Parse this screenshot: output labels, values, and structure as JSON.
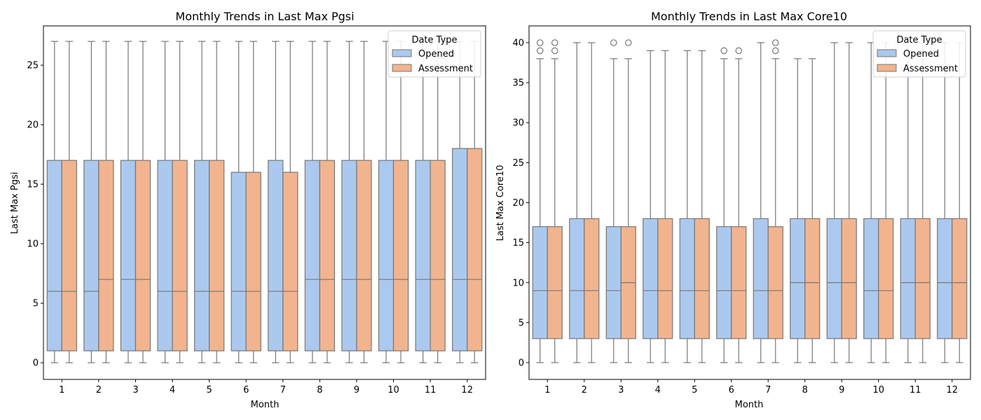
{
  "legend": {
    "title": "Date Type",
    "placement": "upper-right"
  },
  "colors": {
    "Opened": "#abc9ee",
    "Assessment": "#f1b48e",
    "edge": "#777777"
  },
  "chart_data": [
    {
      "type": "box",
      "title": "Monthly Trends in Last Max Pgsi",
      "xlabel": "Month",
      "ylabel": "Last Max Pgsi",
      "ylim": [
        -1.4,
        28.3
      ],
      "yticks": [
        0,
        5,
        10,
        15,
        20,
        25
      ],
      "categories": [
        "1",
        "2",
        "3",
        "4",
        "5",
        "6",
        "7",
        "8",
        "9",
        "10",
        "11",
        "12"
      ],
      "series": [
        {
          "name": "Opened",
          "boxes": [
            {
              "min": 0,
              "q1": 1,
              "median": 6,
              "q3": 17,
              "max": 27,
              "outliers": []
            },
            {
              "min": 0,
              "q1": 1,
              "median": 6,
              "q3": 17,
              "max": 27,
              "outliers": []
            },
            {
              "min": 0,
              "q1": 1,
              "median": 7,
              "q3": 17,
              "max": 27,
              "outliers": []
            },
            {
              "min": 0,
              "q1": 1,
              "median": 6,
              "q3": 17,
              "max": 27,
              "outliers": []
            },
            {
              "min": 0,
              "q1": 1,
              "median": 6,
              "q3": 17,
              "max": 27,
              "outliers": []
            },
            {
              "min": 0,
              "q1": 1,
              "median": 6,
              "q3": 16,
              "max": 27,
              "outliers": []
            },
            {
              "min": 0,
              "q1": 1,
              "median": 6,
              "q3": 17,
              "max": 27,
              "outliers": []
            },
            {
              "min": 0,
              "q1": 1,
              "median": 7,
              "q3": 17,
              "max": 27,
              "outliers": []
            },
            {
              "min": 0,
              "q1": 1,
              "median": 7,
              "q3": 17,
              "max": 27,
              "outliers": []
            },
            {
              "min": 0,
              "q1": 1,
              "median": 7,
              "q3": 17,
              "max": 27,
              "outliers": []
            },
            {
              "min": 0,
              "q1": 1,
              "median": 7,
              "q3": 17,
              "max": 27,
              "outliers": []
            },
            {
              "min": 0,
              "q1": 1,
              "median": 7,
              "q3": 18,
              "max": 27,
              "outliers": []
            }
          ]
        },
        {
          "name": "Assessment",
          "boxes": [
            {
              "min": 0,
              "q1": 1,
              "median": 6,
              "q3": 17,
              "max": 27,
              "outliers": []
            },
            {
              "min": 0,
              "q1": 1,
              "median": 7,
              "q3": 17,
              "max": 27,
              "outliers": []
            },
            {
              "min": 0,
              "q1": 1,
              "median": 7,
              "q3": 17,
              "max": 27,
              "outliers": []
            },
            {
              "min": 0,
              "q1": 1,
              "median": 6,
              "q3": 17,
              "max": 27,
              "outliers": []
            },
            {
              "min": 0,
              "q1": 1,
              "median": 6,
              "q3": 17,
              "max": 27,
              "outliers": []
            },
            {
              "min": 0,
              "q1": 1,
              "median": 6,
              "q3": 16,
              "max": 27,
              "outliers": []
            },
            {
              "min": 0,
              "q1": 1,
              "median": 6,
              "q3": 16,
              "max": 27,
              "outliers": []
            },
            {
              "min": 0,
              "q1": 1,
              "median": 7,
              "q3": 17,
              "max": 27,
              "outliers": []
            },
            {
              "min": 0,
              "q1": 1,
              "median": 7,
              "q3": 17,
              "max": 27,
              "outliers": []
            },
            {
              "min": 0,
              "q1": 1,
              "median": 7,
              "q3": 17,
              "max": 27,
              "outliers": []
            },
            {
              "min": 0,
              "q1": 1,
              "median": 7,
              "q3": 17,
              "max": 27,
              "outliers": []
            },
            {
              "min": 0,
              "q1": 1,
              "median": 7,
              "q3": 18,
              "max": 27,
              "outliers": []
            }
          ]
        }
      ]
    },
    {
      "type": "box",
      "title": "Monthly Trends in Last Max Core10",
      "xlabel": "Month",
      "ylabel": "Last Max Core10",
      "ylim": [
        -2.1,
        42.1
      ],
      "yticks": [
        0,
        5,
        10,
        15,
        20,
        25,
        30,
        35,
        40
      ],
      "categories": [
        "1",
        "2",
        "3",
        "4",
        "5",
        "6",
        "7",
        "8",
        "9",
        "10",
        "11",
        "12"
      ],
      "series": [
        {
          "name": "Opened",
          "boxes": [
            {
              "min": 0,
              "q1": 3,
              "median": 9,
              "q3": 17,
              "max": 38,
              "outliers": [
                39,
                40
              ]
            },
            {
              "min": 0,
              "q1": 3,
              "median": 9,
              "q3": 18,
              "max": 40,
              "outliers": []
            },
            {
              "min": 0,
              "q1": 3,
              "median": 9,
              "q3": 17,
              "max": 38,
              "outliers": [
                40
              ]
            },
            {
              "min": 0,
              "q1": 3,
              "median": 9,
              "q3": 18,
              "max": 39,
              "outliers": []
            },
            {
              "min": 0,
              "q1": 3,
              "median": 9,
              "q3": 18,
              "max": 39,
              "outliers": []
            },
            {
              "min": 0,
              "q1": 3,
              "median": 9,
              "q3": 17,
              "max": 38,
              "outliers": [
                39
              ]
            },
            {
              "min": 0,
              "q1": 3,
              "median": 9,
              "q3": 18,
              "max": 40,
              "outliers": []
            },
            {
              "min": 0,
              "q1": 3,
              "median": 10,
              "q3": 18,
              "max": 38,
              "outliers": []
            },
            {
              "min": 0,
              "q1": 3,
              "median": 10,
              "q3": 18,
              "max": 40,
              "outliers": []
            },
            {
              "min": 0,
              "q1": 3,
              "median": 9,
              "q3": 18,
              "max": 40,
              "outliers": []
            },
            {
              "min": 0,
              "q1": 3,
              "median": 10,
              "q3": 18,
              "max": 40,
              "outliers": []
            },
            {
              "min": 0,
              "q1": 3,
              "median": 10,
              "q3": 18,
              "max": 40,
              "outliers": []
            }
          ]
        },
        {
          "name": "Assessment",
          "boxes": [
            {
              "min": 0,
              "q1": 3,
              "median": 9,
              "q3": 17,
              "max": 38,
              "outliers": [
                39,
                40
              ]
            },
            {
              "min": 0,
              "q1": 3,
              "median": 9,
              "q3": 18,
              "max": 40,
              "outliers": []
            },
            {
              "min": 0,
              "q1": 3,
              "median": 10,
              "q3": 17,
              "max": 38,
              "outliers": [
                40
              ]
            },
            {
              "min": 0,
              "q1": 3,
              "median": 9,
              "q3": 18,
              "max": 39,
              "outliers": []
            },
            {
              "min": 0,
              "q1": 3,
              "median": 9,
              "q3": 18,
              "max": 39,
              "outliers": []
            },
            {
              "min": 0,
              "q1": 3,
              "median": 9,
              "q3": 17,
              "max": 38,
              "outliers": [
                39
              ]
            },
            {
              "min": 0,
              "q1": 3,
              "median": 9,
              "q3": 17,
              "max": 38,
              "outliers": [
                39,
                40
              ]
            },
            {
              "min": 0,
              "q1": 3,
              "median": 10,
              "q3": 18,
              "max": 38,
              "outliers": []
            },
            {
              "min": 0,
              "q1": 3,
              "median": 10,
              "q3": 18,
              "max": 40,
              "outliers": []
            },
            {
              "min": 0,
              "q1": 3,
              "median": 9,
              "q3": 18,
              "max": 40,
              "outliers": []
            },
            {
              "min": 0,
              "q1": 3,
              "median": 10,
              "q3": 18,
              "max": 40,
              "outliers": []
            },
            {
              "min": 0,
              "q1": 3,
              "median": 10,
              "q3": 18,
              "max": 40,
              "outliers": []
            }
          ]
        }
      ]
    }
  ]
}
